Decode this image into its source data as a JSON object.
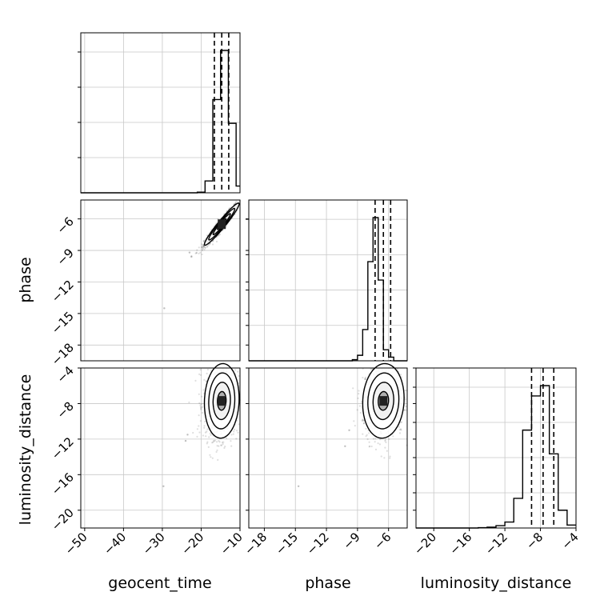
{
  "chart_data": {
    "type": "corner",
    "parameters": [
      "geocent_time",
      "phase",
      "luminosity_distance"
    ],
    "axis_labels": {
      "geocent_time": "geocent_time",
      "phase": "phase",
      "luminosity_distance": "luminosity_distance"
    },
    "ranges": {
      "geocent_time": [
        -51,
        -10
      ],
      "phase": [
        -19.5,
        -4.2
      ],
      "luminosity_distance": [
        -22,
        -4
      ]
    },
    "ticks": {
      "geocent_time": [
        "-50",
        "-40",
        "-30",
        "-20",
        "-10"
      ],
      "phase": [
        "-18",
        "-15",
        "-12",
        "-9",
        "-6"
      ],
      "luminosity_distance": [
        "-20",
        "-16",
        "-12",
        "-8",
        "-4"
      ]
    },
    "grid": true,
    "histograms": [
      {
        "parameter": "geocent_time",
        "bin_edges": [
          -51,
          -49,
          -47,
          -45,
          -43,
          -41,
          -39,
          -37,
          -35,
          -33,
          -31,
          -29,
          -27,
          -25,
          -23,
          -21,
          -19,
          -17,
          -15,
          -13,
          -11,
          -10
        ],
        "counts": [
          0,
          0,
          0,
          0,
          0,
          0,
          0,
          0,
          0,
          0,
          0,
          0,
          0,
          0,
          0,
          2,
          35,
          275,
          420,
          205,
          20
        ],
        "quantiles": [
          -16.6,
          -14.7,
          -12.9
        ]
      },
      {
        "parameter": "phase",
        "bin_edges": [
          -19.5,
          -19,
          -18.5,
          -18,
          -17.5,
          -17,
          -16.5,
          -16,
          -15.5,
          -15,
          -14.5,
          -14,
          -13.5,
          -13,
          -12.5,
          -12,
          -11.5,
          -11,
          -10.5,
          -10,
          -9.5,
          -9,
          -8.5,
          -8,
          -7.5,
          -7,
          -6.5,
          -6,
          -5.5,
          -5,
          -4.5,
          -4.2
        ],
        "counts": [
          0,
          0,
          0,
          0,
          0,
          0,
          0,
          0,
          0,
          0,
          0,
          0,
          0,
          0,
          0,
          0,
          0,
          0,
          0,
          0,
          3,
          15,
          85,
          270,
          390,
          220,
          30,
          10,
          0,
          0,
          0
        ],
        "quantiles": [
          -7.3,
          -6.5,
          -5.8
        ]
      },
      {
        "parameter": "luminosity_distance",
        "bin_edges": [
          -22,
          -21,
          -20,
          -19,
          -18,
          -17,
          -16,
          -15,
          -14,
          -13,
          -12,
          -11,
          -10,
          -9,
          -8,
          -7,
          -6,
          -5,
          -4
        ],
        "counts": [
          0,
          0,
          0,
          0,
          0,
          0,
          0,
          1,
          3,
          8,
          20,
          100,
          330,
          445,
          480,
          250,
          60,
          10
        ],
        "quantiles": [
          -9.0,
          -7.7,
          -6.5
        ]
      }
    ],
    "pairs": [
      {
        "x": "geocent_time",
        "y": "phase",
        "center": [
          -14.7,
          -6.5
        ],
        "cov": [
          [
            5.0,
            2.15
          ],
          [
            2.15,
            1.0
          ]
        ],
        "n_points": 1000,
        "outliers": [
          [
            -29.5,
            -14.5
          ],
          [
            -23,
            -9.2
          ],
          [
            -22.5,
            -9.6
          ]
        ]
      },
      {
        "x": "geocent_time",
        "y": "luminosity_distance",
        "center": [
          -14.7,
          -7.7
        ],
        "cov": [
          [
            5.0,
            0.3
          ],
          [
            0.3,
            4.4
          ]
        ],
        "n_points": 1000,
        "outliers": [
          [
            -29.7,
            -17.3
          ],
          [
            -23.5,
            -11.5
          ],
          [
            -24,
            -12.2
          ]
        ]
      },
      {
        "x": "phase",
        "y": "luminosity_distance",
        "center": [
          -6.5,
          -7.7
        ],
        "cov": [
          [
            1.0,
            0.15
          ],
          [
            0.15,
            4.4
          ]
        ],
        "n_points": 1000,
        "outliers": [
          [
            -14.7,
            -17.3
          ],
          [
            -9.8,
            -11.0
          ],
          [
            -10.2,
            -12.8
          ]
        ]
      }
    ]
  }
}
